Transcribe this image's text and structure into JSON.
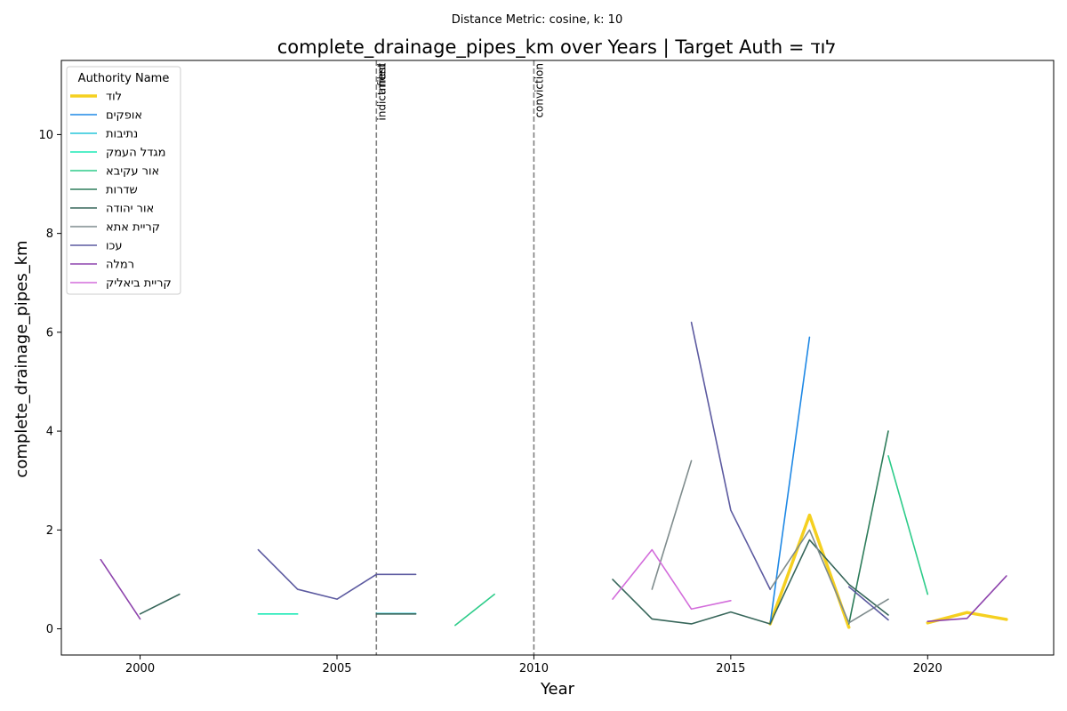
{
  "chart_data": {
    "type": "line",
    "suptitle": "Distance Metric: cosine, k: 10",
    "title": "complete_drainage_pipes_km over Years | Target Auth = לוד",
    "xlabel": "Year",
    "ylabel": "complete_drainage_pipes_km",
    "xlim": [
      1998,
      2023.2
    ],
    "ylim": [
      -0.53,
      11.5
    ],
    "xticks": [
      2000,
      2005,
      2010,
      2015,
      2020
    ],
    "yticks": [
      0,
      2,
      4,
      6,
      8,
      10
    ],
    "grid": false,
    "legend": {
      "title": "Authority Name",
      "position": "upper-left"
    },
    "events": [
      {
        "x": 2006,
        "labels": [
          "indictment",
          "filed",
          "arrest"
        ]
      },
      {
        "x": 2010,
        "labels": [
          "conviction"
        ]
      }
    ],
    "series": [
      {
        "name": "לוד",
        "color": "#f5d020",
        "width": 3.5,
        "segments": [
          [
            [
              2016,
              0.1
            ],
            [
              2017,
              2.3
            ],
            [
              2018,
              0.03
            ]
          ],
          [
            [
              2020,
              0.12
            ],
            [
              2021,
              0.33
            ],
            [
              2022,
              0.19
            ]
          ]
        ]
      },
      {
        "name": "אופקים",
        "color": "#1e88e5",
        "width": 1.6,
        "segments": [
          [
            [
              2016,
              0.1
            ],
            [
              2017,
              5.9
            ]
          ]
        ]
      },
      {
        "name": "נתיבות",
        "color": "#26c6da",
        "width": 1.6,
        "segments": [
          [
            [
              2006,
              0.31
            ],
            [
              2007,
              0.31
            ]
          ]
        ]
      },
      {
        "name": "מגדל העמק",
        "color": "#1de9b6",
        "width": 1.6,
        "segments": [
          [
            [
              2003,
              0.3
            ],
            [
              2004,
              0.3
            ]
          ]
        ]
      },
      {
        "name": "אור עקיבא",
        "color": "#2ecc8a",
        "width": 1.6,
        "segments": [
          [
            [
              2008,
              0.07
            ],
            [
              2009,
              0.7
            ]
          ],
          [
            [
              2019,
              3.5
            ],
            [
              2020,
              0.7
            ]
          ]
        ]
      },
      {
        "name": "שדרות",
        "color": "#2e7d5b",
        "width": 1.6,
        "segments": [
          [
            [
              2018,
              0.1
            ],
            [
              2019,
              4.0
            ]
          ]
        ]
      },
      {
        "name": "אור יהודה",
        "color": "#37665a",
        "width": 1.6,
        "segments": [
          [
            [
              2000,
              0.3
            ],
            [
              2001,
              0.7
            ]
          ],
          [
            [
              2006,
              0.3
            ],
            [
              2007,
              0.3
            ]
          ],
          [
            [
              2012,
              1.0
            ],
            [
              2013,
              0.2
            ],
            [
              2014,
              0.1
            ],
            [
              2015,
              0.34
            ],
            [
              2016,
              0.1
            ],
            [
              2017,
              1.8
            ],
            [
              2018,
              0.9
            ],
            [
              2019,
              0.28
            ]
          ]
        ]
      },
      {
        "name": "קריית אתא",
        "color": "#7f8c8d",
        "width": 1.6,
        "segments": [
          [
            [
              2013,
              0.8
            ],
            [
              2014,
              3.4
            ]
          ],
          [
            [
              2016,
              0.8
            ],
            [
              2017,
              2.0
            ],
            [
              2018,
              0.12
            ],
            [
              2019,
              0.6
            ]
          ]
        ]
      },
      {
        "name": "עכו",
        "color": "#5c5aa0",
        "width": 1.6,
        "segments": [
          [
            [
              2003,
              1.6
            ],
            [
              2004,
              0.8
            ],
            [
              2005,
              0.6
            ],
            [
              2006,
              1.1
            ],
            [
              2007,
              1.1
            ]
          ],
          [
            [
              2014,
              6.2
            ],
            [
              2015,
              2.4
            ],
            [
              2016,
              0.8
            ]
          ],
          [
            [
              2018,
              0.85
            ],
            [
              2019,
              0.18
            ]
          ]
        ]
      },
      {
        "name": "רמלה",
        "color": "#8e44ad",
        "width": 1.6,
        "segments": [
          [
            [
              1999,
              1.4
            ],
            [
              2000,
              0.2
            ]
          ],
          [
            [
              2020,
              0.15
            ],
            [
              2021,
              0.21
            ],
            [
              2022,
              1.07
            ]
          ]
        ]
      },
      {
        "name": "קריית ביאליק",
        "color": "#d36ddb",
        "width": 1.6,
        "segments": [
          [
            [
              2012,
              0.6
            ],
            [
              2013,
              1.6
            ],
            [
              2014,
              0.4
            ],
            [
              2015,
              0.57
            ]
          ]
        ]
      }
    ]
  }
}
